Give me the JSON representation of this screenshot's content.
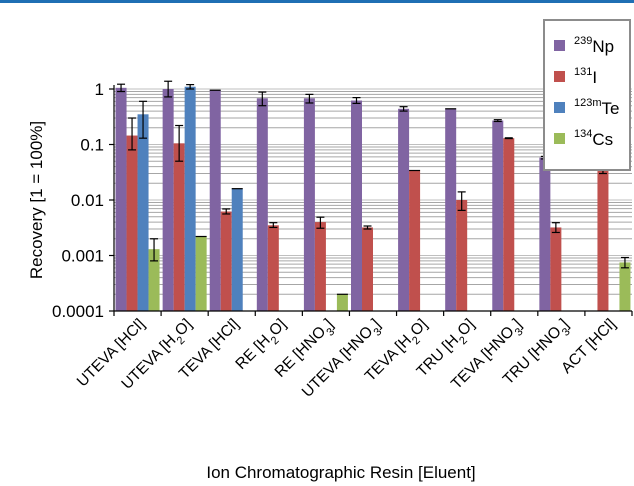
{
  "chart_data": {
    "type": "bar",
    "title": "",
    "xlabel": "Ion Chromatographic Resin [Eluent]",
    "ylabel": "Recovery [1 = 100%]",
    "yscale": "log",
    "ylim": [
      0.0001,
      1
    ],
    "yticks": [
      "1",
      "0.1",
      "0.01",
      "0.001",
      "0.0001"
    ],
    "ytick_values": [
      1,
      0.1,
      0.01,
      0.001,
      0.0001
    ],
    "grid": "horizontal minor gridlines",
    "legend_position": "top-right",
    "categories": [
      {
        "resin": "UTEVA",
        "eluent": "HCl",
        "sub": ""
      },
      {
        "resin": "UTEVA",
        "eluent": "H",
        "sub": "2",
        "tail": "O"
      },
      {
        "resin": "TEVA",
        "eluent": "HCl",
        "sub": ""
      },
      {
        "resin": "RE",
        "eluent": "H",
        "sub": "2",
        "tail": "O"
      },
      {
        "resin": "RE",
        "eluent": "HNO",
        "sub": "3",
        "tail": ""
      },
      {
        "resin": "UTEVA",
        "eluent": "HNO",
        "sub": "3",
        "tail": ""
      },
      {
        "resin": "TEVA",
        "eluent": "H",
        "sub": "2",
        "tail": "O"
      },
      {
        "resin": "TRU",
        "eluent": "H",
        "sub": "2",
        "tail": "O"
      },
      {
        "resin": "TEVA",
        "eluent": "HNO",
        "sub": "3",
        "tail": ""
      },
      {
        "resin": "TRU",
        "eluent": "HNO",
        "sub": "3",
        "tail": ""
      },
      {
        "resin": "ACT",
        "eluent": "HCl",
        "sub": ""
      }
    ],
    "series": [
      {
        "name": "Np",
        "mass": "239",
        "color": "#8064a2",
        "values": [
          1.05,
          1.0,
          0.95,
          0.68,
          0.68,
          0.62,
          0.44,
          0.44,
          0.27,
          0.058,
          null
        ],
        "errors": [
          [
            0.9,
            1.22
          ],
          [
            0.72,
            1.38
          ],
          null,
          [
            0.5,
            0.88
          ],
          [
            0.56,
            0.8
          ],
          [
            0.55,
            0.7
          ],
          [
            0.4,
            0.48
          ],
          null,
          [
            0.26,
            0.28
          ],
          [
            0.055,
            0.061
          ],
          null
        ]
      },
      {
        "name": "I",
        "mass": "131",
        "color": "#c0504d",
        "values": [
          0.145,
          0.105,
          0.0062,
          0.0035,
          0.004,
          0.0032,
          0.034,
          0.01,
          0.13,
          0.0032,
          0.035
        ],
        "errors": [
          [
            0.08,
            0.3
          ],
          [
            0.05,
            0.22
          ],
          [
            0.0056,
            0.0069
          ],
          [
            0.0032,
            0.0039
          ],
          [
            0.0031,
            0.0049
          ],
          [
            0.003,
            0.0034
          ],
          null,
          [
            0.0065,
            0.014
          ],
          [
            0.128,
            0.132
          ],
          [
            0.0026,
            0.0039
          ],
          [
            0.03,
            0.041
          ]
        ]
      },
      {
        "name": "Te",
        "mass": "123m",
        "color": "#4f81bd",
        "values": [
          0.35,
          1.1,
          0.016,
          null,
          null,
          null,
          null,
          null,
          null,
          null,
          null
        ],
        "errors": [
          [
            0.13,
            0.6
          ],
          [
            1.0,
            1.2
          ],
          null,
          null,
          null,
          null,
          null,
          null,
          null,
          null,
          null
        ]
      },
      {
        "name": "Cs",
        "mass": "134",
        "color": "#9bbb59",
        "values": [
          0.0013,
          0.0022,
          null,
          null,
          0.0002,
          null,
          null,
          null,
          null,
          null,
          0.00075
        ],
        "errors": [
          [
            0.0008,
            0.002
          ],
          null,
          null,
          null,
          null,
          null,
          null,
          null,
          null,
          null,
          [
            0.0006,
            0.00092
          ]
        ]
      }
    ]
  }
}
